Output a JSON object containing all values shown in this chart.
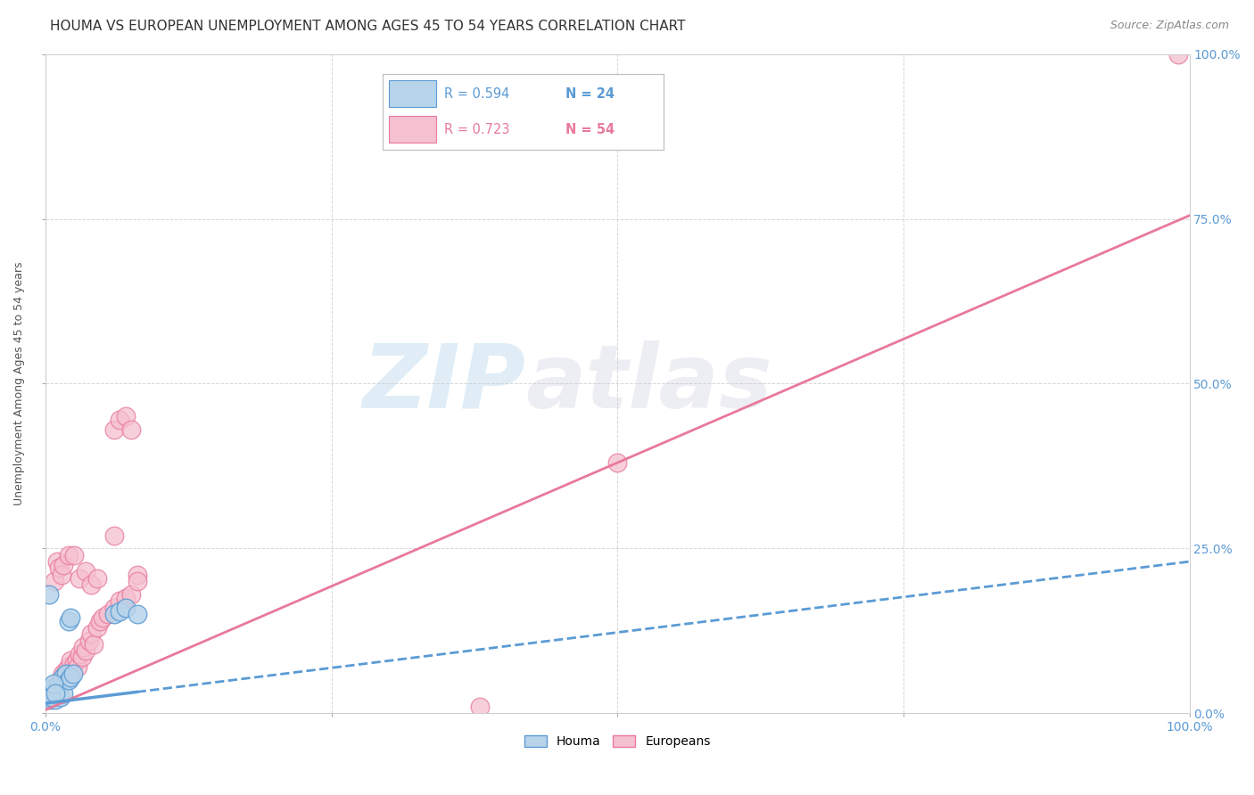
{
  "title": "HOUMA VS EUROPEAN UNEMPLOYMENT AMONG AGES 45 TO 54 YEARS CORRELATION CHART",
  "source": "Source: ZipAtlas.com",
  "ylabel": "Unemployment Among Ages 45 to 54 years",
  "xlim": [
    0,
    1
  ],
  "ylim": [
    0,
    1
  ],
  "xticks_bottom": [
    0.0,
    1.0
  ],
  "xticklabels_bottom": [
    "0.0%",
    "100.0%"
  ],
  "yticks_right": [
    0.0,
    0.25,
    0.5,
    0.75,
    1.0
  ],
  "yticklabels_right": [
    "0.0%",
    "25.0%",
    "50.0%",
    "75.0%",
    "100.0%"
  ],
  "houma_color": "#b8d4ea",
  "houma_edge_color": "#5b9bd5",
  "europeans_color": "#f5c0d0",
  "europeans_edge_color": "#e8799a",
  "houma_line_color": "#5b9bd5",
  "europeans_line_color": "#e8799a",
  "legend_R_houma": "R = 0.594",
  "legend_N_houma": "N = 24",
  "legend_R_europeans": "R = 0.723",
  "legend_N_europeans": "N = 54",
  "watermark_zip": "ZIP",
  "watermark_atlas": "atlas",
  "houma_points_x": [
    0.003,
    0.005,
    0.007,
    0.008,
    0.009,
    0.01,
    0.012,
    0.013,
    0.015,
    0.016,
    0.018,
    0.02,
    0.022,
    0.024,
    0.003,
    0.005,
    0.007,
    0.009,
    0.02,
    0.022,
    0.06,
    0.065,
    0.07,
    0.08
  ],
  "houma_points_y": [
    0.025,
    0.02,
    0.03,
    0.04,
    0.02,
    0.035,
    0.045,
    0.025,
    0.055,
    0.03,
    0.06,
    0.05,
    0.055,
    0.06,
    0.18,
    0.025,
    0.045,
    0.03,
    0.14,
    0.145,
    0.15,
    0.155,
    0.16,
    0.15
  ],
  "europeans_points_x": [
    0.002,
    0.003,
    0.004,
    0.006,
    0.007,
    0.009,
    0.01,
    0.011,
    0.013,
    0.015,
    0.016,
    0.018,
    0.02,
    0.022,
    0.023,
    0.025,
    0.027,
    0.028,
    0.03,
    0.032,
    0.033,
    0.035,
    0.038,
    0.04,
    0.042,
    0.045,
    0.048,
    0.05,
    0.055,
    0.06,
    0.065,
    0.07,
    0.075,
    0.08,
    0.06,
    0.065,
    0.07,
    0.075,
    0.08,
    0.008,
    0.01,
    0.012,
    0.014,
    0.016,
    0.02,
    0.025,
    0.03,
    0.035,
    0.04,
    0.045,
    0.06,
    0.38,
    0.5,
    0.99
  ],
  "europeans_points_y": [
    0.02,
    0.025,
    0.03,
    0.035,
    0.025,
    0.04,
    0.03,
    0.045,
    0.05,
    0.06,
    0.055,
    0.065,
    0.07,
    0.08,
    0.06,
    0.075,
    0.08,
    0.07,
    0.09,
    0.085,
    0.1,
    0.095,
    0.11,
    0.12,
    0.105,
    0.13,
    0.14,
    0.145,
    0.15,
    0.16,
    0.17,
    0.175,
    0.18,
    0.21,
    0.43,
    0.445,
    0.45,
    0.43,
    0.2,
    0.2,
    0.23,
    0.22,
    0.21,
    0.225,
    0.24,
    0.24,
    0.205,
    0.215,
    0.195,
    0.205,
    0.27,
    0.01,
    0.38,
    1.0
  ],
  "houma_reg_intercept": 0.015,
  "houma_reg_slope": 0.215,
  "europeans_reg_intercept": 0.005,
  "europeans_reg_slope": 0.75,
  "background_color": "#ffffff",
  "grid_color": "#cccccc",
  "title_fontsize": 11,
  "axis_label_fontsize": 9,
  "tick_fontsize": 10,
  "legend_fontsize": 11
}
